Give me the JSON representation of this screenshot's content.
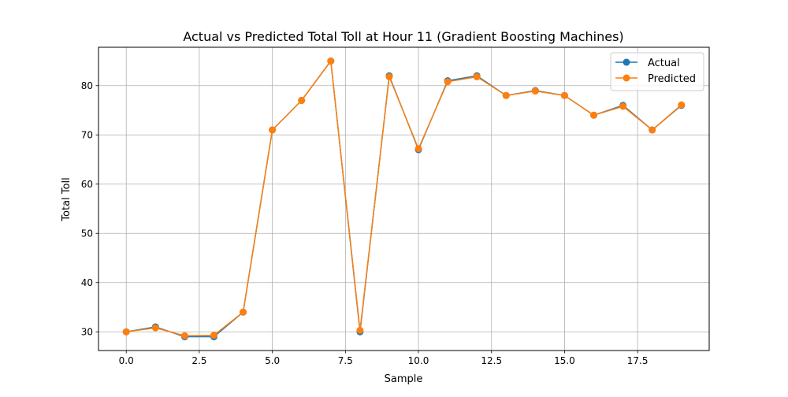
{
  "chart_data": {
    "type": "line",
    "title": "Actual vs Predicted Total Toll at Hour 11 (Gradient Boosting Machines)",
    "xlabel": "Sample",
    "ylabel": "Total Toll",
    "x": [
      0,
      1,
      2,
      3,
      4,
      5,
      6,
      7,
      8,
      9,
      10,
      11,
      12,
      13,
      14,
      15,
      16,
      17,
      18,
      19
    ],
    "xlim": [
      -0.95,
      19.95
    ],
    "ylim": [
      26.2,
      87.8
    ],
    "xticks": [
      0.0,
      2.5,
      5.0,
      7.5,
      10.0,
      12.5,
      15.0,
      17.5
    ],
    "xtick_labels": [
      "0.0",
      "2.5",
      "5.0",
      "7.5",
      "10.0",
      "12.5",
      "15.0",
      "17.5"
    ],
    "yticks": [
      30,
      40,
      50,
      60,
      70,
      80
    ],
    "ytick_labels": [
      "30",
      "40",
      "50",
      "60",
      "70",
      "80"
    ],
    "grid": true,
    "legend_position": "upper right",
    "series": [
      {
        "name": "Actual",
        "color": "#1f77b4",
        "values": [
          30,
          31,
          29,
          29,
          34,
          71,
          77,
          85,
          30,
          82,
          67,
          81,
          82,
          78,
          79,
          78,
          74,
          76,
          71,
          76
        ]
      },
      {
        "name": "Predicted",
        "color": "#ff7f0e",
        "values": [
          30.0,
          30.8,
          29.2,
          29.3,
          34.0,
          71.0,
          77.0,
          85.0,
          30.3,
          81.8,
          67.2,
          80.8,
          81.8,
          78.0,
          78.9,
          78.0,
          74.0,
          75.8,
          71.0,
          76.1
        ]
      }
    ]
  }
}
